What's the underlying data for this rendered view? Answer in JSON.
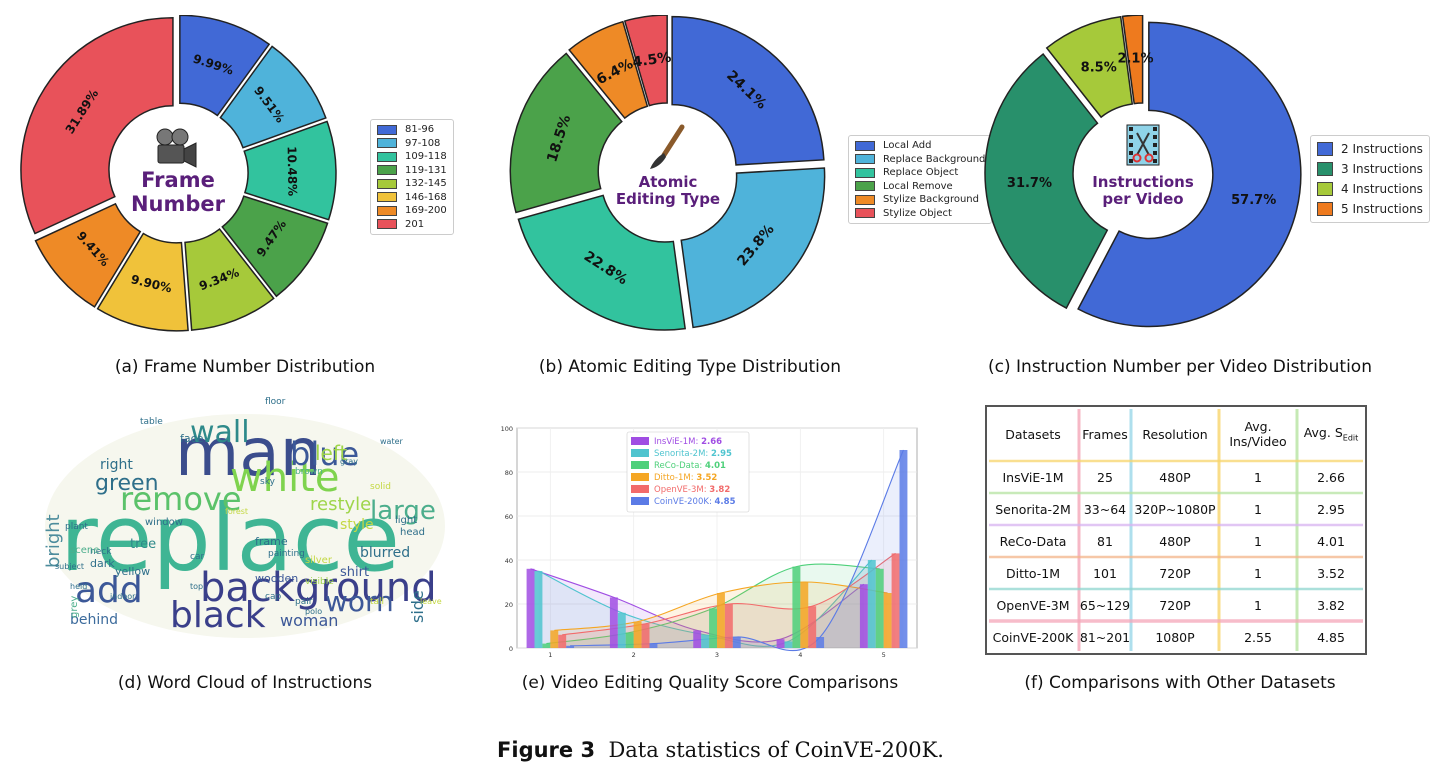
{
  "chart_data": [
    {
      "type": "pie",
      "title": "Frame Number",
      "caption": "(a) Frame Number Distribution",
      "center_label": [
        "Frame",
        "Number"
      ],
      "center_icon": "film-camera-icon",
      "labels": [
        "81-96",
        "97-108",
        "109-118",
        "119-131",
        "132-145",
        "146-168",
        "169-200",
        "201"
      ],
      "values": [
        9.99,
        9.51,
        10.48,
        9.47,
        9.34,
        9.9,
        9.41,
        31.89
      ],
      "value_labels": [
        "9.99%",
        "9.51%",
        "10.48%",
        "9.47%",
        "9.34%",
        "9.90%",
        "9.41%",
        "31.89%"
      ],
      "colors": [
        "#4169d6",
        "#4fb3da",
        "#32c39e",
        "#4ba24a",
        "#a6c93a",
        "#f0c23a",
        "#ee8a26",
        "#e8525a"
      ],
      "legend": "right"
    },
    {
      "type": "pie",
      "title": "Atomic Editing Type",
      "caption": "(b) Atomic Editing Type Distribution",
      "center_label": [
        "Atomic",
        "Editing Type"
      ],
      "center_icon": "paintbrush-icon",
      "labels": [
        "Local Add",
        "Replace Background",
        "Replace Object",
        "Local Remove",
        "Stylize Background",
        "Stylize Object"
      ],
      "values": [
        24.1,
        23.8,
        22.8,
        18.5,
        6.4,
        4.5
      ],
      "value_labels": [
        "24.1%",
        "23.8%",
        "22.8%",
        "18.5%",
        "6.4%",
        "4.5%"
      ],
      "colors": [
        "#4169d6",
        "#4fb3da",
        "#32c39e",
        "#4ba24a",
        "#ee8a26",
        "#e8525a"
      ],
      "legend": "right"
    },
    {
      "type": "pie",
      "title": "Instructions per Video",
      "caption": "(c) Instruction Number per Video Distribution",
      "center_label": [
        "Instructions",
        "per Video"
      ],
      "center_icon": "scissors-film-icon",
      "labels": [
        "2 Instructions",
        "3 Instructions",
        "4 Instructions",
        "5 Instructions"
      ],
      "values": [
        57.7,
        31.7,
        8.5,
        2.1
      ],
      "value_labels": [
        "57.7%",
        "31.7%",
        "8.5%",
        "2.1%"
      ],
      "colors": [
        "#4169d6",
        "#28906b",
        "#a6c93a",
        "#ee7a1e"
      ],
      "legend": "right"
    },
    {
      "type": "bar",
      "title": "",
      "caption": "(e) Video Editing Quality Score Comparisons",
      "xlabel": "",
      "ylabel": "",
      "categories": [
        "1",
        "2",
        "3",
        "4",
        "5"
      ],
      "xlim": [
        0.6,
        5.4
      ],
      "ylim": [
        0,
        100
      ],
      "yticks": [
        "0",
        "20",
        "40",
        "60",
        "80",
        "100"
      ],
      "grid": true,
      "legend": "top-center",
      "series": [
        {
          "name": "InsViE-1M",
          "score": "2.66",
          "color": "#a04de3",
          "values": [
            36,
            23,
            8,
            4,
            29
          ]
        },
        {
          "name": "Senorita-2M",
          "score": "2.95",
          "color": "#4fc4cf",
          "values": [
            35,
            16,
            6,
            3,
            40
          ]
        },
        {
          "name": "ReCo-Data",
          "score": "4.01",
          "color": "#4ed07a",
          "values": [
            2,
            7,
            18,
            37,
            36
          ]
        },
        {
          "name": "Ditto-1M",
          "score": "3.52",
          "color": "#f5a623",
          "values": [
            8,
            12,
            25,
            30,
            25
          ]
        },
        {
          "name": "OpenVE-3M",
          "score": "3.82",
          "color": "#f26b6b",
          "values": [
            6,
            11,
            20,
            19,
            43
          ]
        },
        {
          "name": "CoinVE-200K",
          "score": "4.85",
          "color": "#5b7be6",
          "values": [
            1,
            2,
            5,
            5,
            90
          ]
        }
      ]
    }
  ],
  "wordcloud": {
    "caption": "(d) Word Cloud of Instructions",
    "words": [
      {
        "t": "replace",
        "c": "#3fb594",
        "s": 92
      },
      {
        "t": "man",
        "c": "#3b4d8c",
        "s": 66
      },
      {
        "t": "background",
        "c": "#3a3f8a",
        "s": 40
      },
      {
        "t": "white",
        "c": "#7fd34e",
        "s": 40
      },
      {
        "t": "remove",
        "c": "#5bc26a",
        "s": 32
      },
      {
        "t": "blue",
        "c": "#3c5898",
        "s": 32
      },
      {
        "t": "wall",
        "c": "#2e8a8a",
        "s": 30
      },
      {
        "t": "add",
        "c": "#3c5898",
        "s": 36
      },
      {
        "t": "black",
        "c": "#3a3f8a",
        "s": 36
      },
      {
        "t": "worn",
        "c": "#3c5898",
        "s": 28
      },
      {
        "t": "large",
        "c": "#4cae8c",
        "s": 26
      },
      {
        "t": "green",
        "c": "#2e6f8a",
        "s": 22
      },
      {
        "t": "restyle",
        "c": "#9fd54a",
        "s": 18
      },
      {
        "t": "left",
        "c": "#9fd54a",
        "s": 20
      },
      {
        "t": "bright",
        "c": "#4c8c9c",
        "s": 18
      },
      {
        "t": "woman",
        "c": "#3c5898",
        "s": 16
      },
      {
        "t": "blurred",
        "c": "#2e6f8a",
        "s": 14
      },
      {
        "t": "style",
        "c": "#c4d843",
        "s": 14
      },
      {
        "t": "behind",
        "c": "#3c6b9c",
        "s": 14
      },
      {
        "t": "right",
        "c": "#2e6f8a",
        "s": 14
      },
      {
        "t": "shirt",
        "c": "#3c5898",
        "s": 13
      },
      {
        "t": "tree",
        "c": "#2e8a8a",
        "s": 13
      },
      {
        "t": "frame",
        "c": "#2e6f8a",
        "s": 11
      },
      {
        "t": "yellow",
        "c": "#2e6f8a",
        "s": 11
      },
      {
        "t": "wooden",
        "c": "#3c5898",
        "s": 11
      },
      {
        "t": "dark",
        "c": "#2e6f8a",
        "s": 11
      },
      {
        "t": "face",
        "c": "#2e6f8a",
        "s": 11
      },
      {
        "t": "window",
        "c": "#2e6f8a",
        "s": 10
      },
      {
        "t": "side",
        "c": "#2e6f8a",
        "s": 16
      },
      {
        "t": "silver",
        "c": "#c4d843",
        "s": 10
      },
      {
        "t": "head",
        "c": "#2e6f8a",
        "s": 10
      },
      {
        "t": "light",
        "c": "#2e6f8a",
        "s": 10
      },
      {
        "t": "table",
        "c": "#2e6f8a",
        "s": 9
      },
      {
        "t": "floor",
        "c": "#2e6f8a",
        "s": 9
      },
      {
        "t": "sky",
        "c": "#2e6f8a",
        "s": 9
      },
      {
        "t": "brown",
        "c": "#4cae8c",
        "s": 9
      },
      {
        "t": "neck",
        "c": "#2e6f8a",
        "s": 9
      },
      {
        "t": "grey",
        "c": "#4cae8c",
        "s": 10
      },
      {
        "t": "scene",
        "c": "#4cae8c",
        "s": 10
      },
      {
        "t": "plant",
        "c": "#2e6f8a",
        "s": 9
      },
      {
        "t": "painting",
        "c": "#2e6f8a",
        "s": 9
      },
      {
        "t": "visible",
        "c": "#9fd54a",
        "s": 9
      },
      {
        "t": "solid",
        "c": "#c4d843",
        "s": 9
      },
      {
        "t": "car",
        "c": "#2e6f8a",
        "s": 9
      },
      {
        "t": "cap",
        "c": "#2e6f8a",
        "s": 9
      },
      {
        "t": "pair",
        "c": "#2e6f8a",
        "s": 9
      },
      {
        "t": "tall",
        "c": "#c4d843",
        "s": 9
      },
      {
        "t": "water",
        "c": "#2e6f8a",
        "s": 8
      },
      {
        "t": "gray",
        "c": "#2e6f8a",
        "s": 8
      },
      {
        "t": "indoor",
        "c": "#2e6f8a",
        "s": 8
      },
      {
        "t": "held",
        "c": "#2e6f8a",
        "s": 8
      },
      {
        "t": "subject",
        "c": "#2e6f8a",
        "s": 8
      },
      {
        "t": "forest",
        "c": "#c4d843",
        "s": 8
      },
      {
        "t": "top",
        "c": "#2e6f8a",
        "s": 8
      },
      {
        "t": "polo",
        "c": "#2e6f8a",
        "s": 8
      },
      {
        "t": "leave",
        "c": "#c4d843",
        "s": 8
      }
    ]
  },
  "comparison_table": {
    "caption": "(f) Comparisons with Other Datasets",
    "headers": [
      "Datasets",
      "Frames",
      "Resolution",
      "Avg.\nIns/Video",
      "Avg. S"
    ],
    "header_sub": "Edit",
    "rows": [
      [
        "InsViE-1M",
        "25",
        "480P",
        "1",
        "2.66"
      ],
      [
        "Senorita-2M",
        "33~64",
        "320P~1080P",
        "1",
        "2.95"
      ],
      [
        "ReCo-Data",
        "81",
        "480P",
        "1",
        "4.01"
      ],
      [
        "Ditto-1M",
        "101",
        "720P",
        "1",
        "3.52"
      ],
      [
        "OpenVE-3M",
        "65~129",
        "720P",
        "1",
        "3.82"
      ],
      [
        "CoinVE-200K",
        "81~201",
        "1080P",
        "2.55",
        "4.85"
      ]
    ]
  },
  "figure": {
    "label": "Figure 3",
    "text": "Data statistics of CoinVE-200K."
  }
}
